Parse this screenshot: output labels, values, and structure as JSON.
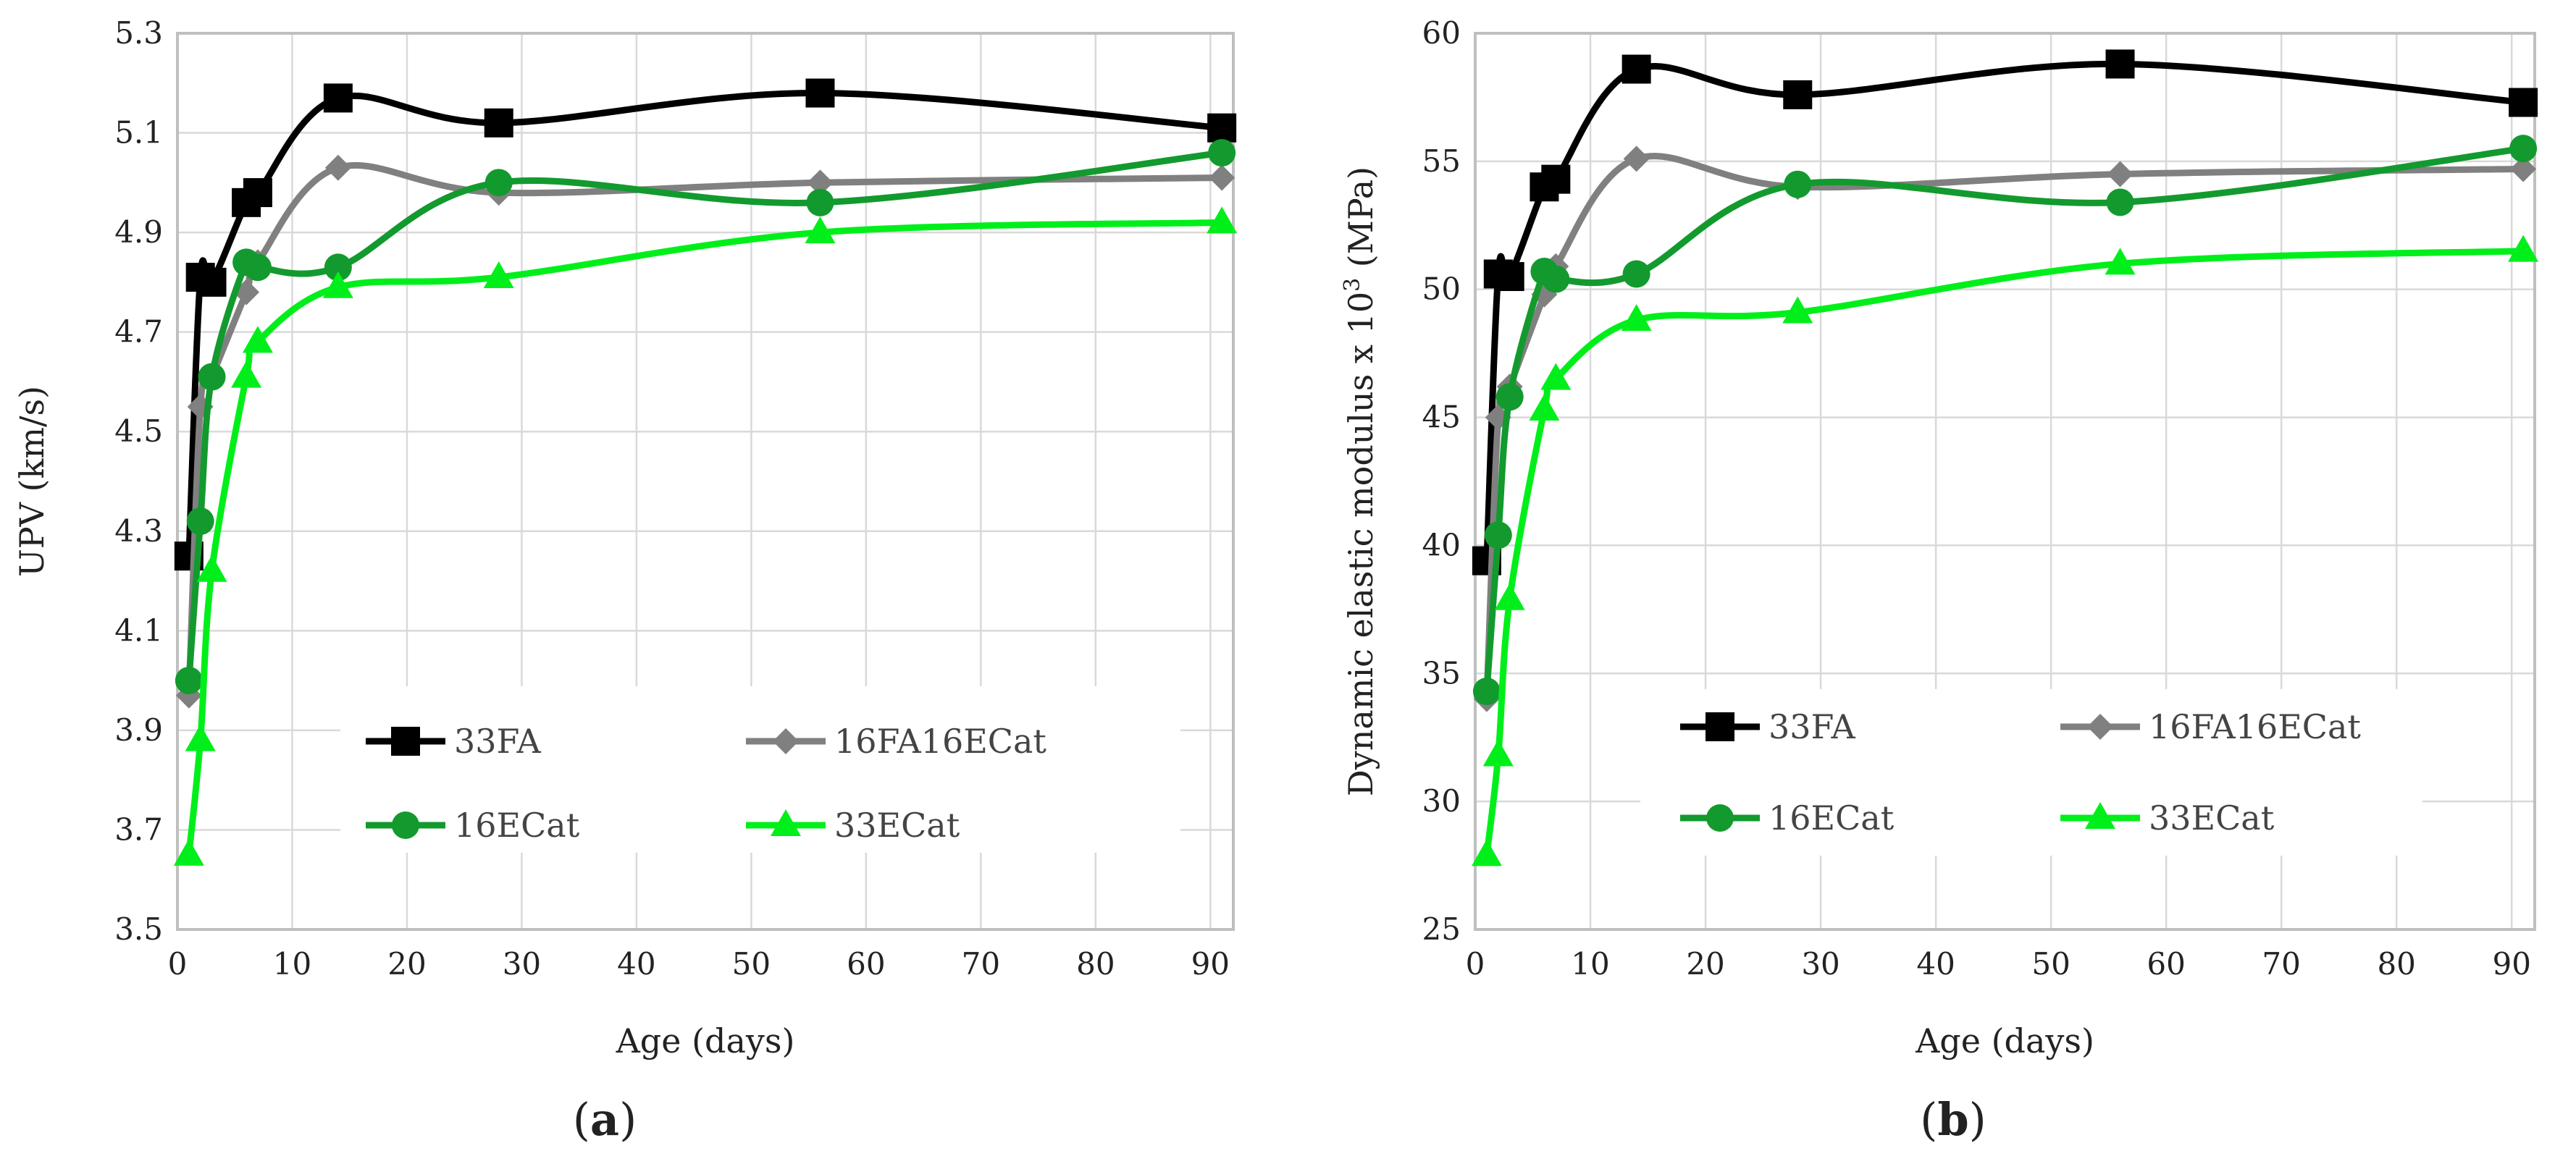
{
  "chart_data": [
    {
      "type": "line",
      "panel_label": "a",
      "xlabel": "Age (days)",
      "ylabel": "UPV (km/s)",
      "xlim": [
        0,
        92
      ],
      "ylim": [
        3.5,
        5.3
      ],
      "xticks": [
        0,
        10,
        20,
        30,
        40,
        50,
        60,
        70,
        80,
        90
      ],
      "yticks": [
        3.5,
        3.7,
        3.9,
        4.1,
        4.3,
        4.5,
        4.7,
        4.9,
        5.1,
        5.3
      ],
      "ytick_labels": [
        "3.5",
        "3.7",
        "3.9",
        "4.1",
        "4.3",
        "4.5",
        "4.7",
        "4.9",
        "5.1",
        "5.3"
      ],
      "grid": true,
      "legend": "inside-bottom",
      "series": [
        {
          "name": "33FA",
          "color": "#000000",
          "marker": "square",
          "x": [
            1,
            2,
            3,
            6,
            7,
            14,
            28,
            56,
            91
          ],
          "y": [
            4.25,
            4.81,
            4.8,
            4.96,
            4.98,
            5.17,
            5.12,
            5.18,
            5.11
          ]
        },
        {
          "name": "16FA16ECat",
          "color": "#808080",
          "marker": "diamond",
          "x": [
            1,
            2,
            3,
            6,
            7,
            14,
            28,
            56,
            91
          ],
          "y": [
            3.97,
            4.55,
            4.61,
            4.78,
            4.84,
            5.03,
            4.98,
            5.0,
            5.01
          ]
        },
        {
          "name": "16ECat",
          "color": "#139a2e",
          "marker": "circle",
          "x": [
            1,
            2,
            3,
            6,
            7,
            14,
            28,
            56,
            91
          ],
          "y": [
            4.0,
            4.32,
            4.61,
            4.84,
            4.83,
            4.83,
            5.0,
            4.96,
            5.06
          ]
        },
        {
          "name": "33ECat",
          "color": "#00ef1a",
          "marker": "triangle",
          "x": [
            1,
            2,
            3,
            6,
            7,
            14,
            28,
            56,
            91
          ],
          "y": [
            3.65,
            3.88,
            4.22,
            4.61,
            4.68,
            4.79,
            4.81,
            4.9,
            4.92
          ]
        }
      ]
    },
    {
      "type": "line",
      "panel_label": "b",
      "xlabel": "Age (days)",
      "ylabel_main": "Dynamic elastic modulus x 10",
      "ylabel_sup": "3",
      "ylabel_unit": " (MPa)",
      "xlim": [
        0,
        92
      ],
      "ylim": [
        25,
        60
      ],
      "xticks": [
        0,
        10,
        20,
        30,
        40,
        50,
        60,
        70,
        80,
        90
      ],
      "yticks": [
        25,
        30,
        35,
        40,
        45,
        50,
        55,
        60
      ],
      "ytick_labels": [
        "25",
        "30",
        "35",
        "40",
        "45",
        "50",
        "55",
        "60"
      ],
      "grid": true,
      "legend": "inside-bottom",
      "series": [
        {
          "name": "33FA",
          "color": "#000000",
          "marker": "square",
          "x": [
            1,
            2,
            3,
            6,
            7,
            14,
            28,
            56,
            91
          ],
          "y": [
            39.4,
            50.6,
            50.5,
            54.0,
            54.3,
            58.6,
            57.6,
            58.8,
            57.3
          ]
        },
        {
          "name": "16FA16ECat",
          "color": "#808080",
          "marker": "diamond",
          "x": [
            1,
            2,
            3,
            6,
            7,
            14,
            28,
            56,
            91
          ],
          "y": [
            34.0,
            45.0,
            46.2,
            49.8,
            50.9,
            55.1,
            54.0,
            54.5,
            54.7
          ]
        },
        {
          "name": "16ECat",
          "color": "#139a2e",
          "marker": "circle",
          "x": [
            1,
            2,
            3,
            6,
            7,
            14,
            28,
            56,
            91
          ],
          "y": [
            34.3,
            40.4,
            45.8,
            50.7,
            50.4,
            50.6,
            54.1,
            53.4,
            55.5
          ]
        },
        {
          "name": "33ECat",
          "color": "#00ef1a",
          "marker": "triangle",
          "x": [
            1,
            2,
            3,
            6,
            7,
            14,
            28,
            56,
            91
          ],
          "y": [
            27.9,
            31.8,
            37.9,
            45.3,
            46.5,
            48.8,
            49.1,
            51.0,
            51.5
          ]
        }
      ]
    }
  ]
}
